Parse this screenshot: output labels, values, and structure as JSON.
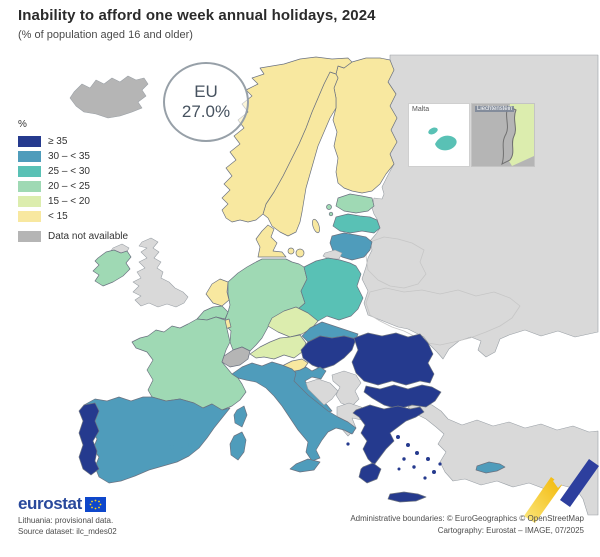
{
  "title": "Inability to afford one week annual holidays, 2024",
  "subtitle": "(% of population aged 16 and older)",
  "eu_badge": {
    "label": "EU",
    "value": "27.0%"
  },
  "legend": {
    "unit": "%",
    "items": [
      {
        "label": "≥ 35",
        "cat": "gte35"
      },
      {
        "label": "30 – < 35",
        "cat": "r30"
      },
      {
        "label": "25 – < 30",
        "cat": "r25"
      },
      {
        "label": "20 – < 25",
        "cat": "r20"
      },
      {
        "label": "15 – < 20",
        "cat": "r15"
      },
      {
        "label": "< 15",
        "cat": "lt15"
      }
    ],
    "no_data_label": "Data not available"
  },
  "insets": {
    "malta": "Malta",
    "liechtenstein": "Liechtenstein"
  },
  "map": {
    "sea_color": "#ffffff",
    "palette": {
      "gte35": "#253a8e",
      "r30": "#4f9cbb",
      "r25": "#59c1b5",
      "r20": "#9fd9b4",
      "r15": "#dcedae",
      "lt15": "#f8e8a0",
      "nodata": "#b5b5b5",
      "noneu": "#d9d9d9"
    },
    "country_categories": {
      "iceland": "nodata",
      "norway": "lt15",
      "sweden": "lt15",
      "finland": "lt15",
      "denmark": "lt15",
      "estonia": "r20",
      "latvia": "r25",
      "lithuania": "r30",
      "poland": "r25",
      "germany": "r20",
      "netherlands": "lt15",
      "belgium": "r20",
      "luxembourg": "lt15",
      "france": "r20",
      "ireland": "r20",
      "uk": "noneu",
      "northern-ireland": "noneu",
      "spain": "r30",
      "portugal": "gte35",
      "italy": "r30",
      "switzerland": "nodata",
      "austria": "r15",
      "czechia": "r15",
      "slovakia": "r30",
      "hungary": "gte35",
      "slovenia": "lt15",
      "croatia": "r30",
      "romania": "gte35",
      "bulgaria": "gte35",
      "greece": "gte35",
      "cyprus": "r30",
      "malta": "r25",
      "liechtenstein": "nodata",
      "eastern-neighbours": "noneu",
      "turkey": "noneu",
      "bosnia": "noneu",
      "serbia": "noneu",
      "western-balkans-south": "noneu",
      "kaliningrad": "noneu"
    }
  },
  "footer": {
    "logo": "eurostat",
    "note1": "Lithuania: provisional data.",
    "note2": "Source dataset: ilc_mdes02",
    "attribution1": "Administrative boundaries: © EuroGeographics © OpenStreetMap",
    "attribution2": "Cartography: Eurostat – IMAGE, 07/2025"
  }
}
